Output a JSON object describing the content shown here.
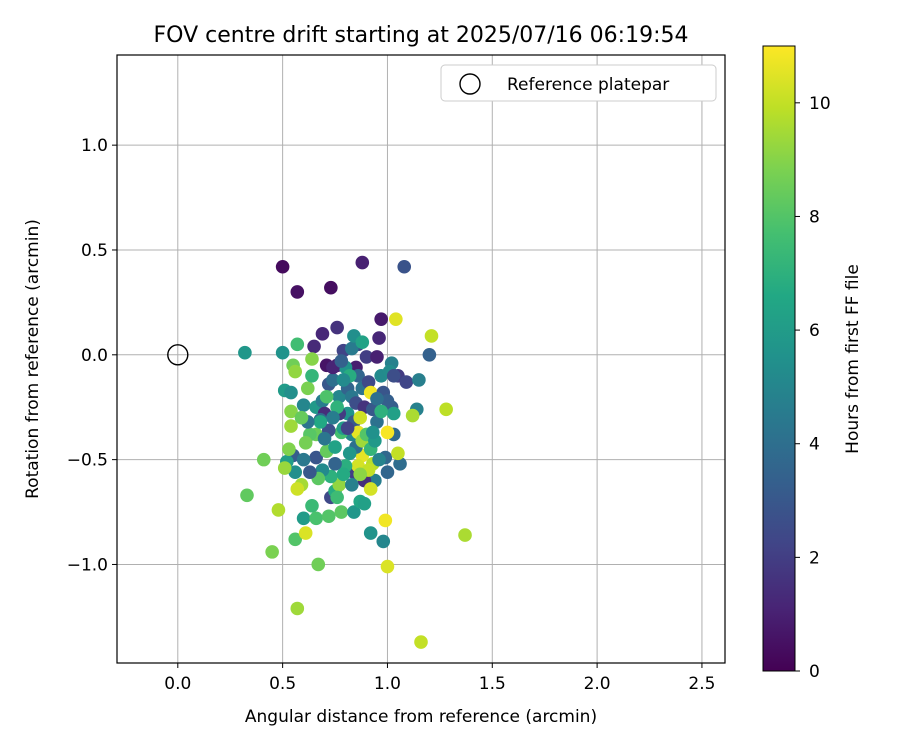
{
  "chart_data": {
    "type": "scatter",
    "title": "FOV centre drift starting at 2025/07/16 06:19:54",
    "xlabel": "Angular distance from reference (arcmin)",
    "ylabel": "Rotation from reference (arcmin)",
    "xlim": [
      -0.29,
      2.61
    ],
    "ylim": [
      -1.47,
      1.43
    ],
    "xticks": [
      0.0,
      0.5,
      1.0,
      1.5,
      2.0,
      2.5
    ],
    "xtick_labels": [
      "0.0",
      "0.5",
      "1.0",
      "1.5",
      "2.0",
      "2.5"
    ],
    "yticks": [
      -1.0,
      -0.5,
      0.0,
      0.5,
      1.0
    ],
    "ytick_labels": [
      "−1.0",
      "−0.5",
      "0.0",
      "0.5",
      "1.0"
    ],
    "grid": true,
    "legend": {
      "position": "top-right",
      "entries": [
        "Reference platepar"
      ]
    },
    "reference_point": {
      "name": "Reference platepar",
      "x": 0.0,
      "y": 0.0,
      "marker": "open-circle"
    },
    "colorbar": {
      "label": "Hours from first FF file",
      "range": [
        0,
        11
      ],
      "ticks": [
        0,
        2,
        4,
        6,
        8,
        10
      ],
      "tick_labels": [
        "0",
        "2",
        "4",
        "6",
        "8",
        "10"
      ],
      "colormap": "viridis"
    },
    "points": [
      {
        "x": 0.5,
        "y": 0.42,
        "t": 0.3
      },
      {
        "x": 0.57,
        "y": 0.3,
        "t": 0.5
      },
      {
        "x": 0.73,
        "y": 0.32,
        "t": 0.4
      },
      {
        "x": 0.88,
        "y": 0.44,
        "t": 1.0
      },
      {
        "x": 1.08,
        "y": 0.42,
        "t": 2.8
      },
      {
        "x": 0.97,
        "y": 0.17,
        "t": 0.8
      },
      {
        "x": 0.69,
        "y": 0.1,
        "t": 1.2
      },
      {
        "x": 0.76,
        "y": 0.13,
        "t": 1.6
      },
      {
        "x": 0.65,
        "y": 0.04,
        "t": 1.3
      },
      {
        "x": 0.71,
        "y": -0.05,
        "t": 0.6
      },
      {
        "x": 0.79,
        "y": 0.02,
        "t": 2.2
      },
      {
        "x": 0.86,
        "y": 0.05,
        "t": 2.5
      },
      {
        "x": 0.9,
        "y": -0.01,
        "t": 2.0
      },
      {
        "x": 0.96,
        "y": 0.08,
        "t": 1.2
      },
      {
        "x": 0.95,
        "y": -0.01,
        "t": 1.0
      },
      {
        "x": 0.85,
        "y": -0.06,
        "t": 0.9
      },
      {
        "x": 0.76,
        "y": -0.05,
        "t": 0.8
      },
      {
        "x": 1.05,
        "y": -0.1,
        "t": 1.9
      },
      {
        "x": 1.09,
        "y": -0.13,
        "t": 2.3
      },
      {
        "x": 1.2,
        "y": 0.0,
        "t": 3.4
      },
      {
        "x": 1.15,
        "y": -0.12,
        "t": 4.7
      },
      {
        "x": 1.14,
        "y": -0.26,
        "t": 4.8
      },
      {
        "x": 1.02,
        "y": -0.25,
        "t": 3.2
      },
      {
        "x": 1.03,
        "y": -0.38,
        "t": 3.8
      },
      {
        "x": 1.06,
        "y": -0.52,
        "t": 3.9
      },
      {
        "x": 1.0,
        "y": -0.56,
        "t": 3.6
      },
      {
        "x": 0.94,
        "y": -0.6,
        "t": 4.6
      },
      {
        "x": 0.89,
        "y": -0.6,
        "t": 1.4
      },
      {
        "x": 0.84,
        "y": -0.56,
        "t": 2.0
      },
      {
        "x": 0.73,
        "y": -0.68,
        "t": 2.4
      },
      {
        "x": 0.66,
        "y": -0.49,
        "t": 2.9
      },
      {
        "x": 0.55,
        "y": -0.48,
        "t": 3.2
      },
      {
        "x": 0.56,
        "y": -0.56,
        "t": 5.4
      },
      {
        "x": 0.52,
        "y": -0.51,
        "t": 6.1
      },
      {
        "x": 0.6,
        "y": -0.78,
        "t": 6.0
      },
      {
        "x": 0.64,
        "y": -0.72,
        "t": 7.4
      },
      {
        "x": 0.66,
        "y": -0.78,
        "t": 7.8
      },
      {
        "x": 0.72,
        "y": -0.77,
        "t": 8.0
      },
      {
        "x": 0.75,
        "y": -0.65,
        "t": 6.8
      },
      {
        "x": 0.78,
        "y": -0.75,
        "t": 8.2
      },
      {
        "x": 0.84,
        "y": -0.75,
        "t": 5.8
      },
      {
        "x": 0.87,
        "y": -0.7,
        "t": 6.5
      },
      {
        "x": 0.92,
        "y": -0.85,
        "t": 5.6
      },
      {
        "x": 0.98,
        "y": -0.89,
        "t": 5.0
      },
      {
        "x": 0.99,
        "y": -0.79,
        "t": 10.8
      },
      {
        "x": 1.0,
        "y": -1.01,
        "t": 10.4
      },
      {
        "x": 1.16,
        "y": -1.37,
        "t": 10.0
      },
      {
        "x": 1.37,
        "y": -0.86,
        "t": 9.6
      },
      {
        "x": 1.28,
        "y": -0.26,
        "t": 9.9
      },
      {
        "x": 1.12,
        "y": -0.29,
        "t": 9.6
      },
      {
        "x": 1.21,
        "y": 0.09,
        "t": 10.0
      },
      {
        "x": 1.04,
        "y": 0.17,
        "t": 10.5
      },
      {
        "x": 0.32,
        "y": 0.01,
        "t": 5.8
      },
      {
        "x": 0.5,
        "y": 0.01,
        "t": 5.6
      },
      {
        "x": 0.57,
        "y": 0.05,
        "t": 7.6
      },
      {
        "x": 0.55,
        "y": -0.05,
        "t": 8.6
      },
      {
        "x": 0.56,
        "y": -0.08,
        "t": 9.2
      },
      {
        "x": 0.51,
        "y": -0.17,
        "t": 6.0
      },
      {
        "x": 0.54,
        "y": -0.18,
        "t": 5.4
      },
      {
        "x": 0.6,
        "y": -0.24,
        "t": 5.0
      },
      {
        "x": 0.62,
        "y": -0.16,
        "t": 8.8
      },
      {
        "x": 0.64,
        "y": -0.1,
        "t": 7.2
      },
      {
        "x": 0.64,
        "y": -0.02,
        "t": 9.0
      },
      {
        "x": 0.66,
        "y": -0.25,
        "t": 5.9
      },
      {
        "x": 0.69,
        "y": -0.22,
        "t": 4.6
      },
      {
        "x": 0.7,
        "y": -0.28,
        "t": 1.4
      },
      {
        "x": 0.72,
        "y": -0.14,
        "t": 3.0
      },
      {
        "x": 0.74,
        "y": -0.12,
        "t": 4.0
      },
      {
        "x": 0.77,
        "y": -0.2,
        "t": 5.0
      },
      {
        "x": 0.8,
        "y": -0.06,
        "t": 5.6
      },
      {
        "x": 0.81,
        "y": -0.16,
        "t": 3.5
      },
      {
        "x": 0.83,
        "y": -0.2,
        "t": 4.4
      },
      {
        "x": 0.85,
        "y": -0.23,
        "t": 2.6
      },
      {
        "x": 0.86,
        "y": -0.1,
        "t": 3.6
      },
      {
        "x": 0.88,
        "y": -0.16,
        "t": 4.2
      },
      {
        "x": 0.89,
        "y": -0.25,
        "t": 1.6
      },
      {
        "x": 0.91,
        "y": -0.13,
        "t": 2.4
      },
      {
        "x": 0.92,
        "y": -0.18,
        "t": 10.8
      },
      {
        "x": 0.93,
        "y": -0.26,
        "t": 3.0
      },
      {
        "x": 0.95,
        "y": -0.32,
        "t": 4.1
      },
      {
        "x": 0.97,
        "y": -0.1,
        "t": 5.2
      },
      {
        "x": 0.98,
        "y": -0.18,
        "t": 2.9
      },
      {
        "x": 1.0,
        "y": -0.22,
        "t": 3.3
      },
      {
        "x": 1.02,
        "y": -0.04,
        "t": 4.8
      },
      {
        "x": 1.01,
        "y": -0.08,
        "t": 5.3
      },
      {
        "x": 1.03,
        "y": -0.28,
        "t": 6.2
      },
      {
        "x": 1.0,
        "y": -0.37,
        "t": 10.9
      },
      {
        "x": 0.99,
        "y": -0.49,
        "t": 3.7
      },
      {
        "x": 1.05,
        "y": -0.47,
        "t": 10.0
      },
      {
        "x": 0.93,
        "y": -0.52,
        "t": 9.8
      },
      {
        "x": 0.88,
        "y": -0.48,
        "t": 10.6
      },
      {
        "x": 0.86,
        "y": -0.53,
        "t": 10.3
      },
      {
        "x": 0.85,
        "y": -0.44,
        "t": 4.1
      },
      {
        "x": 0.83,
        "y": -0.38,
        "t": 5.0
      },
      {
        "x": 0.82,
        "y": -0.47,
        "t": 5.8
      },
      {
        "x": 0.8,
        "y": -0.53,
        "t": 6.9
      },
      {
        "x": 0.78,
        "y": -0.37,
        "t": 7.7
      },
      {
        "x": 0.77,
        "y": -0.62,
        "t": 9.2
      },
      {
        "x": 0.76,
        "y": -0.68,
        "t": 7.5
      },
      {
        "x": 0.73,
        "y": -0.58,
        "t": 7.0
      },
      {
        "x": 0.71,
        "y": -0.46,
        "t": 8.4
      },
      {
        "x": 0.69,
        "y": -0.55,
        "t": 5.2
      },
      {
        "x": 0.66,
        "y": -0.38,
        "t": 8.5
      },
      {
        "x": 0.63,
        "y": -0.38,
        "t": 8.1
      },
      {
        "x": 0.61,
        "y": -0.42,
        "t": 8.7
      },
      {
        "x": 0.59,
        "y": -0.62,
        "t": 9.5
      },
      {
        "x": 0.57,
        "y": -0.64,
        "t": 10.2
      },
      {
        "x": 0.54,
        "y": -0.34,
        "t": 9.4
      },
      {
        "x": 0.54,
        "y": -0.27,
        "t": 9.0
      },
      {
        "x": 0.53,
        "y": -0.45,
        "t": 8.9
      },
      {
        "x": 0.51,
        "y": -0.54,
        "t": 9.3
      },
      {
        "x": 0.48,
        "y": -0.74,
        "t": 9.7
      },
      {
        "x": 0.41,
        "y": -0.5,
        "t": 8.6
      },
      {
        "x": 0.33,
        "y": -0.67,
        "t": 8.3
      },
      {
        "x": 0.45,
        "y": -0.94,
        "t": 8.8
      },
      {
        "x": 0.56,
        "y": -0.88,
        "t": 8.0
      },
      {
        "x": 0.61,
        "y": -0.85,
        "t": 10.4
      },
      {
        "x": 0.67,
        "y": -1.0,
        "t": 8.6
      },
      {
        "x": 0.57,
        "y": -1.21,
        "t": 9.4
      },
      {
        "x": 0.6,
        "y": -0.5,
        "t": 4.4
      },
      {
        "x": 0.68,
        "y": -0.31,
        "t": 3.8
      },
      {
        "x": 0.72,
        "y": -0.36,
        "t": 2.7
      },
      {
        "x": 0.75,
        "y": -0.44,
        "t": 6.3
      },
      {
        "x": 0.79,
        "y": -0.35,
        "t": 6.1
      },
      {
        "x": 0.81,
        "y": -0.28,
        "t": 5.6
      },
      {
        "x": 0.84,
        "y": -0.32,
        "t": 3.1
      },
      {
        "x": 0.86,
        "y": -0.37,
        "t": 10.6
      },
      {
        "x": 0.87,
        "y": -0.3,
        "t": 10.2
      },
      {
        "x": 0.88,
        "y": -0.41,
        "t": 9.4
      },
      {
        "x": 0.9,
        "y": -0.38,
        "t": 8.0
      },
      {
        "x": 0.92,
        "y": -0.45,
        "t": 7.2
      },
      {
        "x": 0.94,
        "y": -0.41,
        "t": 5.9
      },
      {
        "x": 0.96,
        "y": -0.5,
        "t": 4.9
      },
      {
        "x": 0.91,
        "y": -0.55,
        "t": 10.0
      },
      {
        "x": 0.87,
        "y": -0.57,
        "t": 9.1
      },
      {
        "x": 0.83,
        "y": -0.62,
        "t": 4.8
      },
      {
        "x": 0.79,
        "y": -0.57,
        "t": 6.7
      },
      {
        "x": 0.75,
        "y": -0.52,
        "t": 3.5
      },
      {
        "x": 0.7,
        "y": -0.4,
        "t": 4.3
      },
      {
        "x": 0.67,
        "y": -0.59,
        "t": 8.2
      },
      {
        "x": 0.63,
        "y": -0.56,
        "t": 3.0
      },
      {
        "x": 0.92,
        "y": -0.64,
        "t": 10.3
      },
      {
        "x": 0.89,
        "y": -0.71,
        "t": 6.2
      },
      {
        "x": 0.81,
        "y": -0.35,
        "t": 2.2
      },
      {
        "x": 0.77,
        "y": -0.28,
        "t": 1.9
      },
      {
        "x": 0.74,
        "y": -0.06,
        "t": 1.1
      },
      {
        "x": 0.78,
        "y": -0.03,
        "t": 3.4
      },
      {
        "x": 0.83,
        "y": 0.03,
        "t": 4.5
      },
      {
        "x": 0.84,
        "y": 0.09,
        "t": 5.4
      },
      {
        "x": 0.88,
        "y": 0.06,
        "t": 6.3
      },
      {
        "x": 0.82,
        "y": -0.1,
        "t": 6.8
      },
      {
        "x": 0.79,
        "y": -0.12,
        "t": 5.2
      },
      {
        "x": 0.76,
        "y": -0.25,
        "t": 7.1
      },
      {
        "x": 0.74,
        "y": -0.3,
        "t": 4.6
      },
      {
        "x": 0.71,
        "y": -0.2,
        "t": 7.9
      },
      {
        "x": 0.68,
        "y": -0.32,
        "t": 6.6
      },
      {
        "x": 0.93,
        "y": -0.37,
        "t": 5.5
      },
      {
        "x": 0.95,
        "y": -0.21,
        "t": 4.0
      },
      {
        "x": 0.97,
        "y": -0.27,
        "t": 7.0
      },
      {
        "x": 1.03,
        "y": -0.1,
        "t": 2.6
      },
      {
        "x": 0.62,
        "y": -0.32,
        "t": 4.2
      },
      {
        "x": 0.59,
        "y": -0.3,
        "t": 8.4
      }
    ]
  }
}
